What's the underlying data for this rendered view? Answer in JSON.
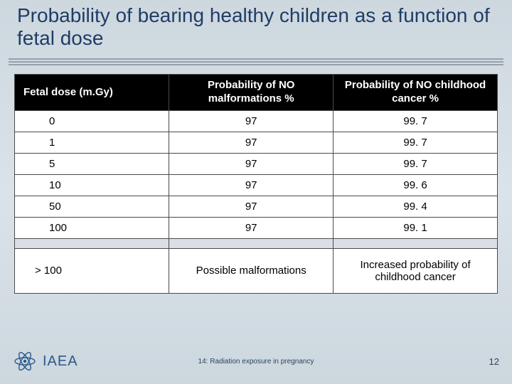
{
  "title": "Probability of bearing healthy children as a function of fetal dose",
  "table": {
    "columns": [
      "Fetal dose (m.Gy)",
      "Probability of NO malformations\n%",
      "Probability of NO childhood cancer\n%"
    ],
    "rows": [
      [
        "0",
        "97",
        "99. 7"
      ],
      [
        "1",
        "97",
        "99. 7"
      ],
      [
        "5",
        "97",
        "99. 7"
      ],
      [
        "10",
        "97",
        "99. 6"
      ],
      [
        "50",
        "97",
        "99. 4"
      ],
      [
        "100",
        "97",
        "99. 1"
      ]
    ],
    "final_row": [
      "> 100",
      "Possible malformations",
      "Increased probability of childhood cancer"
    ],
    "header_bg": "#000000",
    "header_fg": "#ffffff",
    "cell_bg": "#ffffff",
    "border_color": "#4a4a4a",
    "spacer_bg": "#d9dfe5"
  },
  "footer": {
    "org": "IAEA",
    "label": "14: Radiation exposure in pregnancy",
    "page": "12"
  },
  "palette": {
    "title_color": "#1f3d66",
    "bg_top": "#cdd7de",
    "bg_mid": "#dbe3ea"
  }
}
